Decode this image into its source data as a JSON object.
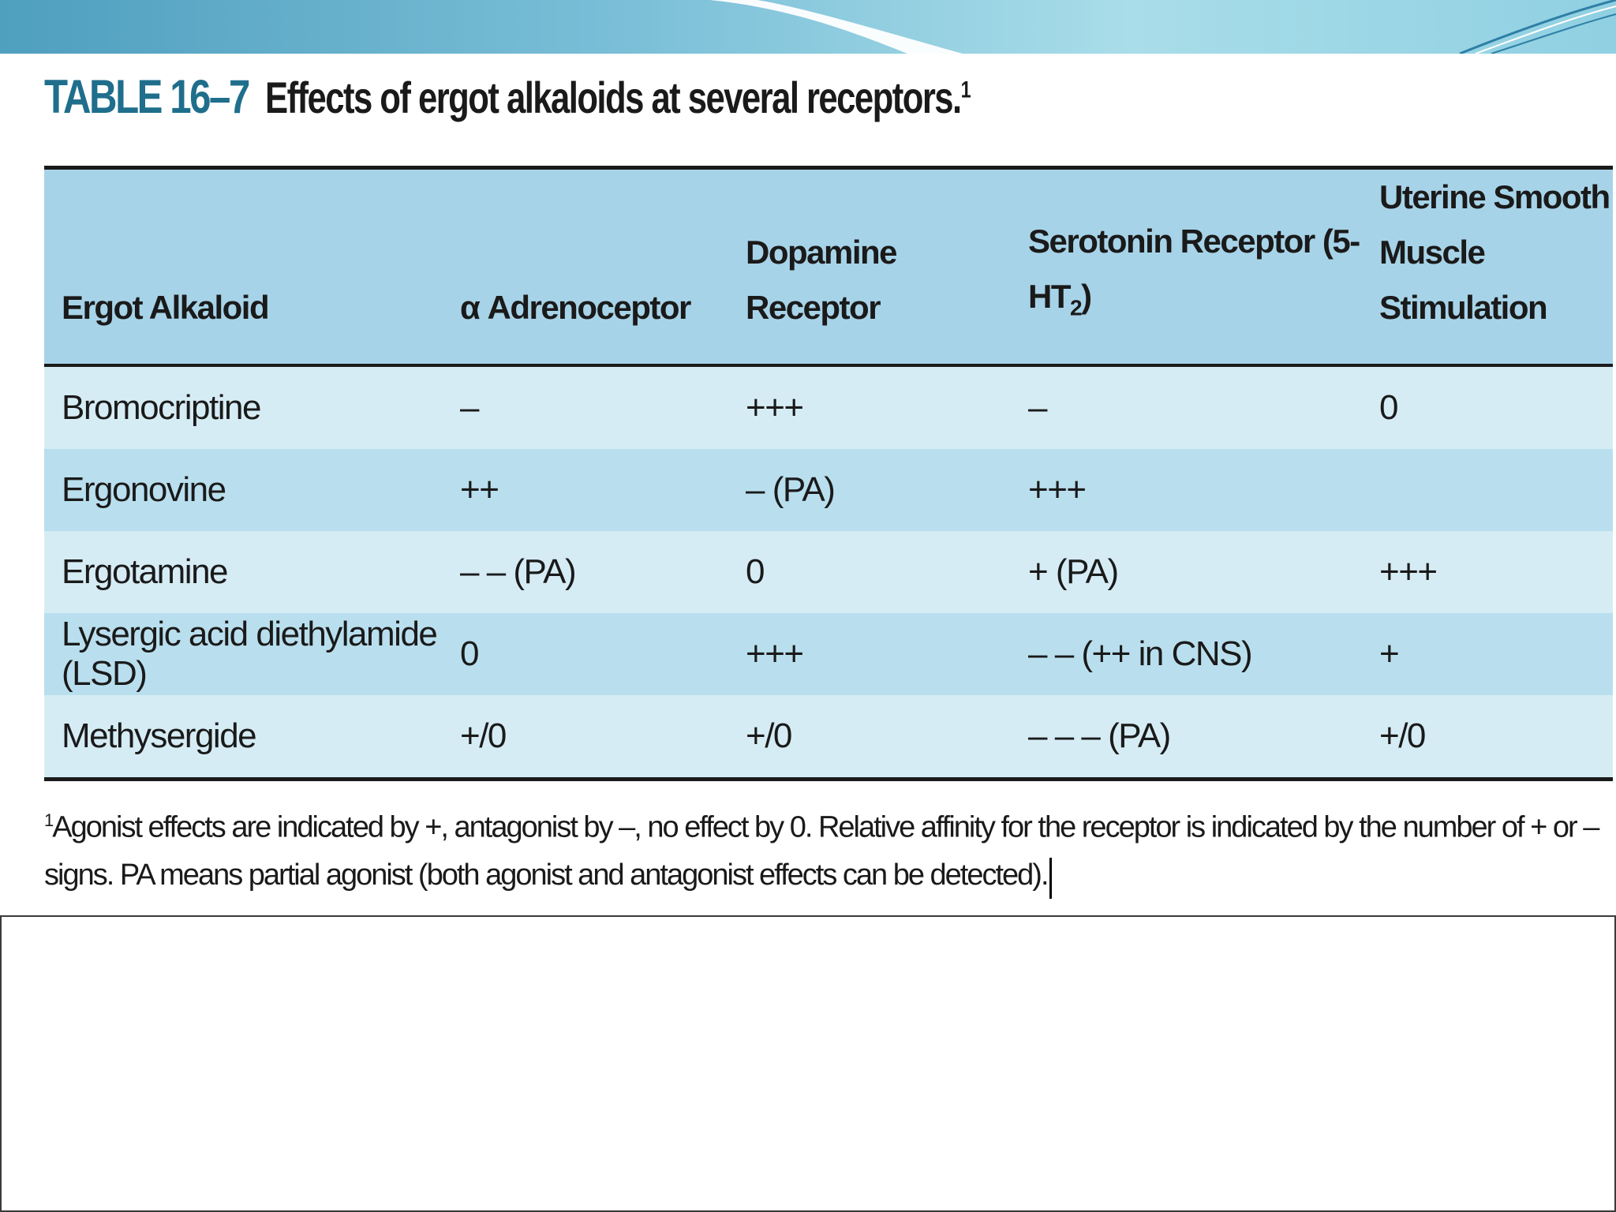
{
  "slide": {
    "accent_color": "#7cc0d8",
    "table_header_color": "#a7d3e8"
  },
  "table": {
    "number": "TABLE 16–7",
    "caption": "Effects of ergot alkaloids at several receptors.",
    "caption_footnote_mark": "1",
    "columns": [
      "Ergot Alkaloid",
      "α Adrenoceptor",
      "Dopamine Receptor",
      "Serotonin Receptor (5-HT",
      "Uterine Smooth",
      "Muscle Stimulation"
    ],
    "serotonin_subscript": "2",
    "serotonin_close": ")",
    "rows": [
      [
        "Bromocriptine",
        "–",
        "+++",
        "–",
        "0"
      ],
      [
        "Ergonovine",
        "++",
        "– (PA)",
        "+++",
        ""
      ],
      [
        "Ergotamine",
        "– – (PA)",
        "0",
        "+ (PA)",
        "+++"
      ],
      [
        "Lysergic acid diethylamide (LSD)",
        "0",
        "+++",
        "– – (++ in CNS)",
        "+"
      ],
      [
        "Methysergide",
        "+/0",
        "+/0",
        "– – – (PA)",
        "+/0"
      ]
    ]
  },
  "footnote": {
    "mark": "1",
    "text": "Agonist effects are indicated by +, antagonist by –, no effect by 0. Relative affinity for the receptor is indicated by the number of + or – signs. PA means partial agonist (both agonist and antagonist effects can be detected)."
  }
}
